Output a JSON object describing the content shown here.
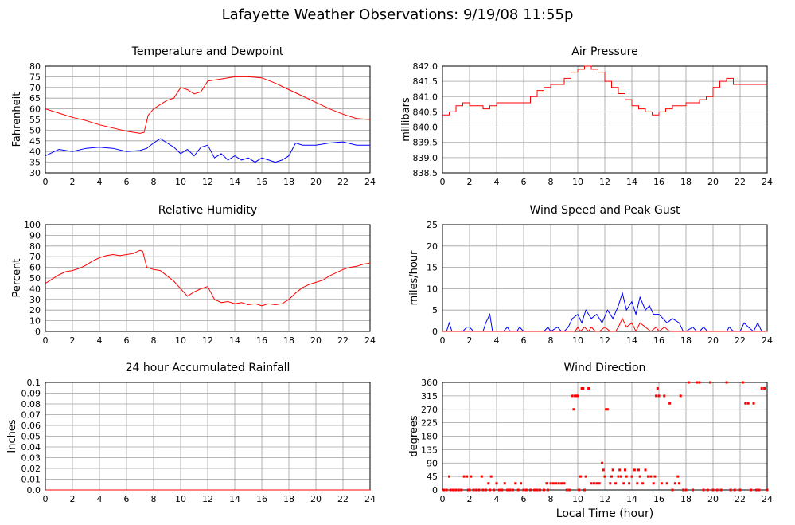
{
  "title": "Lafayette Weather Observations: 9/19/08 11:55p",
  "colors": {
    "red": "#ff0000",
    "blue": "#0000ff",
    "grid": "#a0a0a0",
    "axis": "#000000"
  },
  "chart_data": [
    {
      "id": "temp",
      "type": "line",
      "title": "Temperature and Dewpoint",
      "xlabel": "",
      "ylabel": "Fahrenheit",
      "xlim": [
        0,
        24
      ],
      "ylim": [
        30,
        80
      ],
      "xticks": [
        0,
        2,
        4,
        6,
        8,
        10,
        12,
        14,
        16,
        18,
        20,
        22,
        24
      ],
      "yticks": [
        30,
        35,
        40,
        45,
        50,
        55,
        60,
        65,
        70,
        75,
        80
      ],
      "ytick_labels": [
        "30",
        "35",
        "40",
        "45",
        "50",
        "55",
        "60",
        "65",
        "70",
        "75",
        "80"
      ],
      "grid": true,
      "series": [
        {
          "color": "red",
          "x": [
            0,
            1,
            2,
            3,
            4,
            5,
            6,
            7,
            7.3,
            7.6,
            8,
            8.5,
            9,
            9.5,
            10,
            10.5,
            11,
            11.5,
            12,
            13,
            14,
            15,
            16,
            17,
            18,
            19,
            20,
            21,
            22,
            23,
            24
          ],
          "y": [
            60,
            58,
            56,
            54.5,
            52.5,
            51,
            49.5,
            48.5,
            49,
            57,
            60,
            62,
            64,
            65,
            70,
            69,
            67,
            68,
            73,
            74,
            75,
            75,
            74.5,
            72,
            69,
            66,
            63,
            60,
            57.5,
            55.5,
            55
          ]
        },
        {
          "color": "blue",
          "x": [
            0,
            1,
            2,
            3,
            4,
            5,
            6,
            7,
            7.5,
            8,
            8.5,
            9,
            9.5,
            10,
            10.5,
            11,
            11.5,
            12,
            12.5,
            13,
            13.5,
            14,
            14.5,
            15,
            15.5,
            16,
            16.5,
            17,
            17.5,
            18,
            18.5,
            19,
            20,
            21,
            22,
            23,
            24
          ],
          "y": [
            38,
            41,
            40,
            41.5,
            42,
            41.5,
            40,
            40.5,
            41.5,
            44,
            46,
            44,
            42,
            39,
            41,
            38,
            42,
            43,
            37,
            39,
            36,
            38,
            36,
            37,
            35,
            37,
            36,
            35,
            36,
            38,
            44,
            43,
            43,
            44,
            44.5,
            43,
            43
          ]
        }
      ]
    },
    {
      "id": "pressure",
      "type": "line",
      "title": "Air Pressure",
      "xlabel": "",
      "ylabel": "millibars",
      "xlim": [
        0,
        24
      ],
      "ylim": [
        838.5,
        842.0
      ],
      "xticks": [
        0,
        2,
        4,
        6,
        8,
        10,
        12,
        14,
        16,
        18,
        20,
        22,
        24
      ],
      "yticks": [
        838.5,
        839.0,
        839.5,
        840.0,
        840.5,
        841.0,
        841.5,
        842.0
      ],
      "ytick_labels": [
        "838.5",
        "839.0",
        "839.5",
        "840.0",
        "840.5",
        "841.0",
        "841.5",
        "842.0"
      ],
      "grid": true,
      "series": [
        {
          "color": "red",
          "x": [
            0,
            0.5,
            1,
            1.5,
            2,
            3,
            3.5,
            4,
            5,
            6,
            6.5,
            7,
            7.5,
            8,
            8.5,
            9,
            9.5,
            10,
            10.5,
            11,
            11.5,
            12,
            12.5,
            13,
            13.5,
            14,
            14.5,
            15,
            15.5,
            16,
            16.5,
            17,
            17.5,
            18,
            18.5,
            19,
            19.5,
            20,
            20.5,
            21,
            21.5,
            22,
            23,
            24
          ],
          "y": [
            840.4,
            840.5,
            840.7,
            840.8,
            840.7,
            840.6,
            840.7,
            840.8,
            840.8,
            840.8,
            841.0,
            841.2,
            841.3,
            841.4,
            841.4,
            841.6,
            841.8,
            841.9,
            842.0,
            841.9,
            841.8,
            841.5,
            841.3,
            841.1,
            840.9,
            840.7,
            840.6,
            840.5,
            840.4,
            840.5,
            840.6,
            840.7,
            840.7,
            840.8,
            840.8,
            840.9,
            841.0,
            841.3,
            841.5,
            841.6,
            841.4,
            841.4,
            841.4,
            841.4
          ]
        }
      ]
    },
    {
      "id": "humidity",
      "type": "line",
      "title": "Relative Humidity",
      "xlabel": "",
      "ylabel": "Percent",
      "xlim": [
        0,
        24
      ],
      "ylim": [
        0,
        100
      ],
      "xticks": [
        0,
        2,
        4,
        6,
        8,
        10,
        12,
        14,
        16,
        18,
        20,
        22,
        24
      ],
      "yticks": [
        0,
        10,
        20,
        30,
        40,
        50,
        60,
        70,
        80,
        90,
        100
      ],
      "ytick_labels": [
        "0",
        "10",
        "20",
        "30",
        "40",
        "50",
        "60",
        "70",
        "80",
        "90",
        "100"
      ],
      "grid": true,
      "series": [
        {
          "color": "red",
          "x": [
            0,
            0.5,
            1,
            1.5,
            2,
            2.5,
            3,
            3.5,
            4,
            4.5,
            5,
            5.5,
            6,
            6.5,
            7,
            7.2,
            7.5,
            8,
            8.5,
            9,
            9.5,
            10,
            10.5,
            11,
            11.5,
            12,
            12.5,
            13,
            13.5,
            14,
            14.5,
            15,
            15.5,
            16,
            16.5,
            17,
            17.5,
            18,
            18.5,
            19,
            19.5,
            20,
            20.5,
            21,
            21.5,
            22,
            22.5,
            23,
            23.5,
            24
          ],
          "y": [
            45,
            49,
            53,
            56,
            57,
            59,
            62,
            66,
            69,
            71,
            72,
            71,
            72,
            73,
            76,
            75,
            60,
            58,
            57,
            52,
            47,
            40,
            33,
            37,
            40,
            42,
            30,
            27,
            28,
            26,
            27,
            25,
            26,
            24,
            26,
            25,
            26,
            30,
            36,
            41,
            44,
            46,
            48,
            52,
            55,
            58,
            60,
            61,
            63,
            64
          ]
        }
      ]
    },
    {
      "id": "wind",
      "type": "line",
      "title": "Wind Speed and Peak Gust",
      "xlabel": "",
      "ylabel": "miles/hour",
      "xlim": [
        0,
        24
      ],
      "ylim": [
        0,
        25
      ],
      "xticks": [
        0,
        2,
        4,
        6,
        8,
        10,
        12,
        14,
        16,
        18,
        20,
        22,
        24
      ],
      "yticks": [
        0,
        5,
        10,
        15,
        20,
        25
      ],
      "ytick_labels": [
        "0",
        "5",
        "10",
        "15",
        "20",
        "25"
      ],
      "grid": true,
      "series": [
        {
          "color": "blue",
          "x": [
            0,
            0.3,
            0.5,
            0.7,
            1,
            1.5,
            1.8,
            2,
            2.3,
            2.5,
            3,
            3.2,
            3.5,
            3.7,
            4,
            4.5,
            4.8,
            5,
            5.5,
            5.7,
            6,
            7,
            7.5,
            7.8,
            8,
            8.5,
            8.8,
            9,
            9.3,
            9.6,
            10,
            10.3,
            10.6,
            11,
            11.4,
            11.8,
            12.2,
            12.6,
            13,
            13.3,
            13.6,
            14,
            14.3,
            14.6,
            15,
            15.3,
            15.6,
            16,
            16.3,
            16.6,
            17,
            17.5,
            17.8,
            18,
            18.5,
            18.8,
            19,
            19.3,
            19.6,
            20,
            20.5,
            21,
            21.2,
            21.5,
            22,
            22.3,
            22.6,
            23,
            23.3,
            23.6,
            24
          ],
          "y": [
            0,
            0,
            2,
            0,
            0,
            0,
            1,
            1,
            0,
            0,
            0,
            2,
            4,
            0,
            0,
            0,
            1,
            0,
            0,
            1,
            0,
            0,
            0,
            1,
            0,
            1,
            0,
            0,
            1,
            3,
            4,
            2,
            5,
            3,
            4,
            2,
            5,
            3,
            6,
            9,
            5,
            7,
            4,
            8,
            5,
            6,
            4,
            4,
            3,
            2,
            3,
            2,
            0,
            0,
            1,
            0,
            0,
            1,
            0,
            0,
            0,
            0,
            1,
            0,
            0,
            2,
            1,
            0,
            2,
            0,
            0
          ]
        },
        {
          "color": "red",
          "x": [
            0,
            9.8,
            10,
            10.2,
            10.5,
            10.8,
            11,
            11.3,
            11.6,
            12,
            12.4,
            12.8,
            13,
            13.3,
            13.6,
            14,
            14.3,
            14.6,
            15,
            15.4,
            15.8,
            16,
            16.4,
            16.8,
            17,
            17.5,
            24
          ],
          "y": [
            0,
            0,
            1,
            0,
            1,
            0,
            1,
            0,
            0,
            1,
            0,
            0,
            1,
            3,
            1,
            2,
            0,
            2,
            1,
            0,
            1,
            0,
            1,
            0,
            0,
            0,
            0
          ]
        }
      ]
    },
    {
      "id": "rain",
      "type": "line",
      "title": "24 hour Accumulated Rainfall",
      "xlabel": "",
      "ylabel": "Inches",
      "xlim": [
        0,
        24
      ],
      "ylim": [
        0,
        0.1
      ],
      "xticks": [
        0,
        2,
        4,
        6,
        8,
        10,
        12,
        14,
        16,
        18,
        20,
        22,
        24
      ],
      "yticks": [
        0,
        0.01,
        0.02,
        0.03,
        0.04,
        0.05,
        0.06,
        0.07,
        0.08,
        0.09,
        0.1
      ],
      "ytick_labels": [
        "0.0",
        "0.01",
        "0.02",
        "0.03",
        "0.04",
        "0.05",
        "0.06",
        "0.07",
        "0.08",
        "0.09",
        "0.1"
      ],
      "grid": true,
      "series": [
        {
          "color": "red",
          "x": [
            0,
            24
          ],
          "y": [
            0,
            0
          ]
        }
      ]
    },
    {
      "id": "direction",
      "type": "scatter",
      "title": "Wind Direction",
      "xlabel": "Local Time (hour)",
      "ylabel": "degrees",
      "xlim": [
        0,
        24
      ],
      "ylim": [
        0,
        360
      ],
      "xticks": [
        0,
        2,
        4,
        6,
        8,
        10,
        12,
        14,
        16,
        18,
        20,
        22,
        24
      ],
      "yticks": [
        0,
        45,
        90,
        135,
        180,
        225,
        270,
        315,
        360
      ],
      "ytick_labels": [
        "0",
        "45",
        "90",
        "135",
        "180",
        "225",
        "270",
        "315",
        "360"
      ],
      "grid": true,
      "series": [
        {
          "color": "red",
          "x": [
            0.1,
            0.3,
            0.5,
            0.6,
            0.8,
            1.0,
            1.2,
            1.4,
            1.6,
            1.8,
            1.9,
            2.0,
            2.1,
            2.3,
            2.5,
            2.7,
            2.9,
            3.0,
            3.2,
            3.4,
            3.5,
            3.6,
            3.8,
            4.0,
            4.2,
            4.4,
            4.6,
            4.8,
            5.0,
            5.2,
            5.4,
            5.6,
            5.8,
            6.0,
            6.2,
            6.5,
            6.8,
            7.0,
            7.2,
            7.5,
            7.7,
            7.8,
            8.0,
            8.2,
            8.4,
            8.6,
            8.8,
            9.0,
            9.2,
            9.4,
            9.6,
            9.7,
            9.8,
            9.9,
            10.0,
            10.1,
            10.2,
            10.3,
            10.4,
            10.5,
            10.6,
            10.8,
            11.0,
            11.2,
            11.4,
            11.6,
            11.8,
            11.9,
            12.0,
            12.1,
            12.2,
            12.4,
            12.5,
            12.6,
            12.8,
            13.0,
            13.1,
            13.2,
            13.4,
            13.5,
            13.6,
            13.8,
            14.0,
            14.2,
            14.4,
            14.5,
            14.6,
            14.8,
            15.0,
            15.2,
            15.4,
            15.6,
            15.7,
            15.8,
            15.9,
            16.0,
            16.2,
            16.4,
            16.6,
            16.8,
            17.0,
            17.2,
            17.4,
            17.5,
            17.6,
            17.8,
            18.0,
            18.2,
            18.5,
            18.8,
            19.0,
            19.3,
            19.6,
            19.8,
            20.0,
            20.3,
            20.6,
            21.0,
            21.3,
            21.6,
            22.0,
            22.2,
            22.4,
            22.6,
            22.8,
            23.0,
            23.2,
            23.4,
            23.6,
            23.8,
            24.0
          ],
          "y": [
            0,
            0,
            45,
            0,
            0,
            0,
            0,
            0,
            45,
            45,
            0,
            0,
            45,
            0,
            0,
            0,
            45,
            0,
            0,
            22,
            0,
            45,
            0,
            22,
            0,
            0,
            22,
            0,
            0,
            0,
            22,
            0,
            22,
            0,
            0,
            0,
            0,
            0,
            0,
            0,
            22,
            0,
            22,
            22,
            22,
            22,
            22,
            22,
            0,
            0,
            315,
            270,
            315,
            315,
            315,
            0,
            45,
            340,
            340,
            0,
            45,
            340,
            22,
            22,
            22,
            22,
            90,
            67,
            45,
            270,
            270,
            22,
            45,
            67,
            22,
            45,
            67,
            45,
            22,
            67,
            45,
            22,
            45,
            67,
            22,
            67,
            45,
            22,
            67,
            45,
            45,
            22,
            45,
            315,
            340,
            315,
            22,
            315,
            22,
            290,
            0,
            22,
            45,
            22,
            315,
            0,
            0,
            360,
            0,
            360,
            360,
            0,
            0,
            360,
            0,
            0,
            0,
            360,
            0,
            0,
            0,
            360,
            290,
            290,
            0,
            290,
            0,
            0,
            340,
            340,
            0
          ]
        }
      ]
    }
  ]
}
